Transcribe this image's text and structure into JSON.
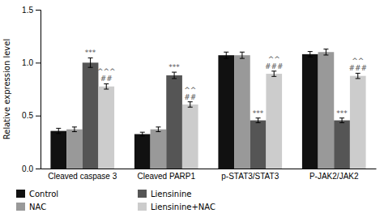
{
  "chart_data": {
    "type": "bar",
    "categories": [
      "Cleaved caspase 3",
      "Cleaved PARP1",
      "p-STAT3/STAT3",
      "P-JAK2/JAK2"
    ],
    "series": [
      {
        "name": "Control",
        "color": "#111111",
        "values": [
          0.355,
          0.325,
          1.07,
          1.08
        ],
        "errors": [
          0.025,
          0.018,
          0.03,
          0.025
        ]
      },
      {
        "name": "NAC",
        "color": "#999999",
        "values": [
          0.37,
          0.37,
          1.07,
          1.1
        ],
        "errors": [
          0.022,
          0.022,
          0.03,
          0.028
        ]
      },
      {
        "name": "Liensinine",
        "color": "#555555",
        "values": [
          1.0,
          0.88,
          0.455,
          0.455
        ],
        "errors": [
          0.045,
          0.03,
          0.022,
          0.022
        ]
      },
      {
        "name": "Liensinine+NAC",
        "color": "#cccccc",
        "values": [
          0.775,
          0.605,
          0.895,
          0.875
        ],
        "errors": [
          0.025,
          0.025,
          0.025,
          0.025
        ]
      }
    ],
    "annotations": [
      {
        "series": "Liensinine",
        "category": "Cleaved caspase 3",
        "texts": [
          "***"
        ]
      },
      {
        "series": "Liensinine",
        "category": "Cleaved PARP1",
        "texts": [
          "***"
        ]
      },
      {
        "series": "Liensinine",
        "category": "p-STAT3/STAT3",
        "texts": [
          "***"
        ]
      },
      {
        "series": "Liensinine",
        "category": "P-JAK2/JAK2",
        "texts": [
          "***"
        ]
      },
      {
        "series": "Liensinine+NAC",
        "category": "Cleaved caspase 3",
        "texts": [
          "^^^",
          "##"
        ]
      },
      {
        "series": "Liensinine+NAC",
        "category": "Cleaved PARP1",
        "texts": [
          "^^",
          "##"
        ]
      },
      {
        "series": "Liensinine+NAC",
        "category": "p-STAT3/STAT3",
        "texts": [
          "^^",
          "###"
        ]
      },
      {
        "series": "Liensinine+NAC",
        "category": "P-JAK2/JAK2",
        "texts": [
          "^^",
          "###"
        ]
      }
    ],
    "ylabel": "Relative expression level",
    "ylim": [
      0.0,
      1.5
    ],
    "yticks": [
      {
        "value": 0.0,
        "label": "0.0"
      },
      0.5,
      {
        "value": 1.0,
        "label": "1.0"
      },
      1.5
    ],
    "legend": "bottom"
  }
}
